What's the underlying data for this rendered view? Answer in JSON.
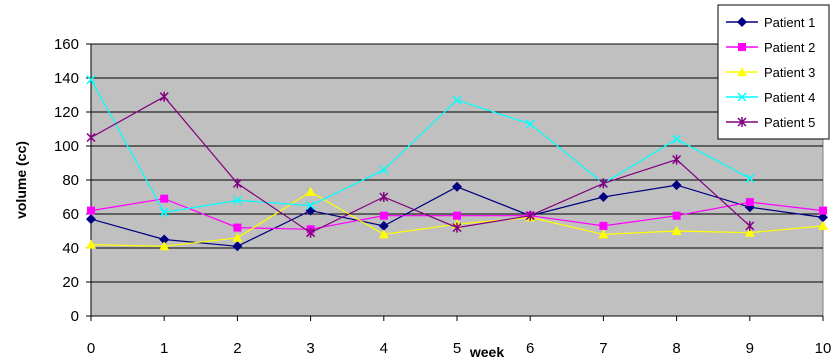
{
  "chart_data": {
    "type": "line",
    "title": "",
    "xlabel": "week",
    "ylabel": "volume (cc)",
    "x": [
      0,
      1,
      2,
      3,
      4,
      5,
      6,
      7,
      8,
      9,
      10
    ],
    "xlim": [
      0,
      10
    ],
    "ylim": [
      0,
      160
    ],
    "yticks": [
      0,
      20,
      40,
      60,
      80,
      100,
      120,
      140,
      160
    ],
    "grid": true,
    "legend_position": "top-right",
    "plot_background": "#c0c0c0",
    "series": [
      {
        "name": "Patient 1",
        "color": "#000080",
        "marker": "diamond",
        "values": [
          57,
          45,
          41,
          62,
          53,
          76,
          59,
          70,
          77,
          64,
          58
        ]
      },
      {
        "name": "Patient 2",
        "color": "#ff00ff",
        "marker": "square",
        "values": [
          62,
          69,
          52,
          51,
          59,
          59,
          59,
          53,
          59,
          67,
          62
        ]
      },
      {
        "name": "Patient 3",
        "color": "#ffff00",
        "marker": "triangle",
        "values": [
          42,
          41,
          46,
          73,
          48,
          54,
          58,
          48,
          50,
          49,
          53
        ]
      },
      {
        "name": "Patient 4",
        "color": "#00ffff",
        "marker": "x",
        "values": [
          139,
          61,
          68,
          65,
          86,
          127,
          113,
          78,
          104,
          81,
          null
        ]
      },
      {
        "name": "Patient 5",
        "color": "#800080",
        "marker": "star",
        "values": [
          105,
          129,
          78,
          49,
          70,
          52,
          59,
          78,
          92,
          53,
          null
        ]
      }
    ]
  }
}
